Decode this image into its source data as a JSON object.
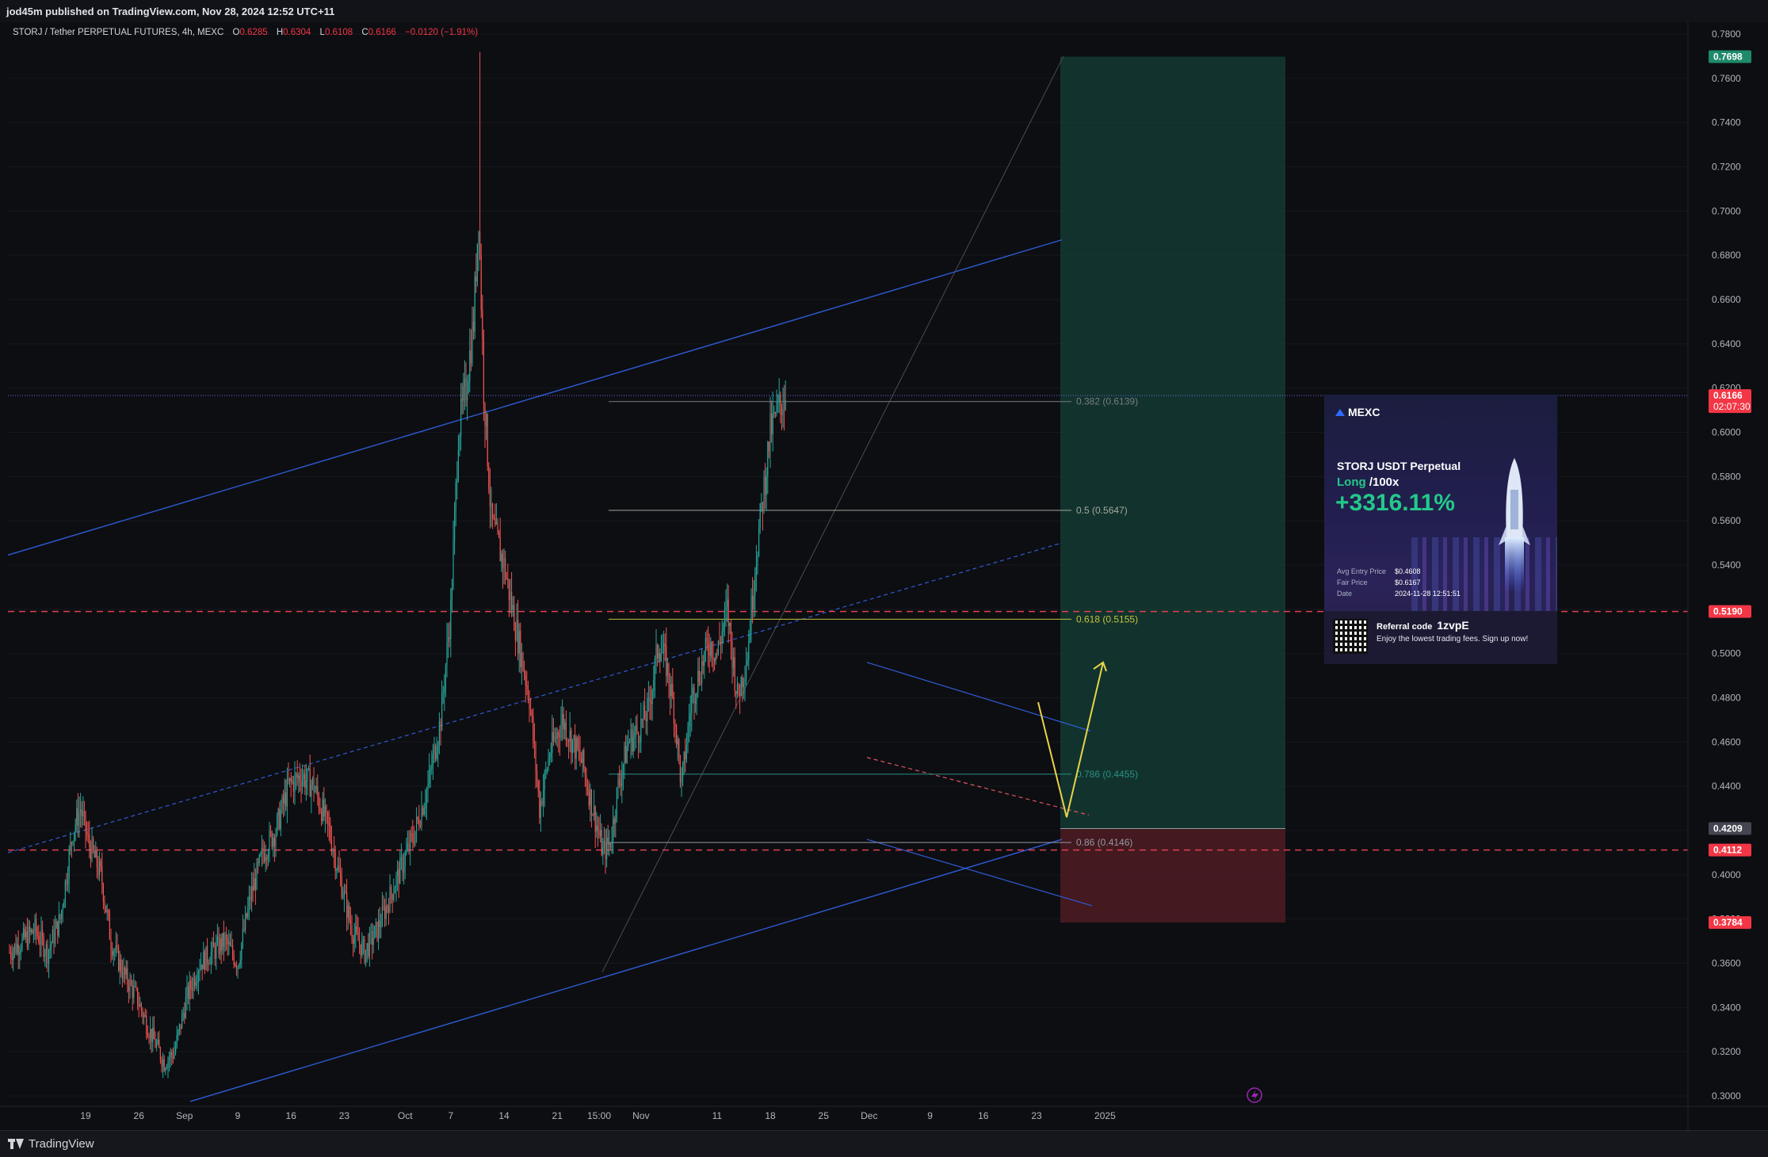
{
  "header": {
    "publish_line": "jod45m published on TradingView.com, Nov 28, 2024 12:52 UTC+11"
  },
  "legend": {
    "symbol": "STORJ / Tether PERPETUAL FUTURES, 4h, MEXC",
    "o_label": "O",
    "o_value": "0.6285",
    "h_label": "H",
    "h_value": "0.6304",
    "l_label": "L",
    "l_value": "0.6108",
    "c_label": "C",
    "c_value": "0.6166",
    "change": "−0.0120 (−1.91%)"
  },
  "price_axis": {
    "ticks": [
      "0.7800",
      "0.7600",
      "0.7400",
      "0.7200",
      "0.7000",
      "0.6800",
      "0.6600",
      "0.6400",
      "0.6200",
      "0.6000",
      "0.5800",
      "0.5600",
      "0.5400",
      "0.5200",
      "0.5000",
      "0.4800",
      "0.4600",
      "0.4400",
      "0.4200",
      "0.4000",
      "0.3800",
      "0.3600",
      "0.3400",
      "0.3200",
      "0.3000"
    ],
    "labels": [
      {
        "text": "0.7698",
        "price": 0.7698,
        "color": "#1e8a6a"
      },
      {
        "text": "0.6166",
        "price": 0.6166,
        "color": "#f23645",
        "sub": "02:07:30"
      },
      {
        "text": "0.5190",
        "price": 0.519,
        "color": "#f23645"
      },
      {
        "text": "0.4209",
        "price": 0.4209,
        "color": "#434651"
      },
      {
        "text": "0.4112",
        "price": 0.4112,
        "color": "#f23645"
      },
      {
        "text": "0.3784",
        "price": 0.3784,
        "color": "#f23645"
      }
    ]
  },
  "time_axis": {
    "ticks": [
      {
        "label": "19",
        "idx": 10
      },
      {
        "label": "26",
        "idx": 52
      },
      {
        "label": "Sep",
        "idx": 88
      },
      {
        "label": "9",
        "idx": 130
      },
      {
        "label": "16",
        "idx": 172
      },
      {
        "label": "23",
        "idx": 214
      },
      {
        "label": "Oct",
        "idx": 262
      },
      {
        "label": "7",
        "idx": 298
      },
      {
        "label": "14",
        "idx": 340
      },
      {
        "label": "21",
        "idx": 382
      },
      {
        "label": "15:00",
        "idx": 415
      },
      {
        "label": "Nov",
        "idx": 448
      },
      {
        "label": "11",
        "idx": 508
      },
      {
        "label": "18",
        "idx": 550
      },
      {
        "label": "25",
        "idx": 592
      },
      {
        "label": "Dec",
        "idx": 628
      },
      {
        "label": "9",
        "idx": 676
      },
      {
        "label": "16",
        "idx": 718
      },
      {
        "label": "23",
        "idx": 760
      },
      {
        "label": "2025",
        "idx": 814
      }
    ]
  },
  "fib_levels": [
    {
      "label": "0.382 (0.6139)",
      "price": 0.6139,
      "color": "#787b86"
    },
    {
      "label": "0.5 (0.5647)",
      "price": 0.5647,
      "color": "#a5a79f"
    },
    {
      "label": "0.618 (0.5155)",
      "price": 0.5155,
      "color": "#c5c23a"
    },
    {
      "label": "0.786 (0.4455)",
      "price": 0.4455,
      "color": "#2a8f86"
    },
    {
      "label": "0.86 (0.4146)",
      "price": 0.4146,
      "color": "#9598a1"
    }
  ],
  "position": {
    "entry": 0.4209,
    "target": 0.7698,
    "stop": 0.3784,
    "profit_color": "#143a33",
    "loss_color": "#4a1b22"
  },
  "chart_data": {
    "type": "candlestick",
    "title": "STORJ / Tether PERPETUAL FUTURES, 4h, MEXC",
    "ylim": [
      0.295,
      0.785
    ],
    "last_price": 0.6166,
    "ohlc_last": {
      "open": 0.6285,
      "high": 0.6304,
      "low": 0.6108,
      "close": 0.6166
    },
    "close_path": [
      [
        0,
        0.365
      ],
      [
        10,
        0.37
      ],
      [
        20,
        0.375
      ],
      [
        30,
        0.365
      ],
      [
        40,
        0.38
      ],
      [
        50,
        0.42
      ],
      [
        56,
        0.43
      ],
      [
        62,
        0.415
      ],
      [
        72,
        0.4
      ],
      [
        80,
        0.37
      ],
      [
        90,
        0.355
      ],
      [
        100,
        0.345
      ],
      [
        110,
        0.33
      ],
      [
        122,
        0.315
      ],
      [
        130,
        0.32
      ],
      [
        140,
        0.345
      ],
      [
        150,
        0.36
      ],
      [
        160,
        0.365
      ],
      [
        170,
        0.37
      ],
      [
        180,
        0.36
      ],
      [
        190,
        0.39
      ],
      [
        200,
        0.41
      ],
      [
        210,
        0.42
      ],
      [
        220,
        0.44
      ],
      [
        230,
        0.445
      ],
      [
        240,
        0.44
      ],
      [
        252,
        0.42
      ],
      [
        262,
        0.395
      ],
      [
        270,
        0.375
      ],
      [
        280,
        0.365
      ],
      [
        290,
        0.375
      ],
      [
        300,
        0.39
      ],
      [
        310,
        0.405
      ],
      [
        320,
        0.42
      ],
      [
        330,
        0.44
      ],
      [
        340,
        0.47
      ],
      [
        348,
        0.52
      ],
      [
        354,
        0.6
      ],
      [
        360,
        0.62
      ],
      [
        366,
        0.65
      ],
      [
        370,
        0.7
      ],
      [
        374,
        0.62
      ],
      [
        380,
        0.56
      ],
      [
        390,
        0.54
      ],
      [
        400,
        0.51
      ],
      [
        410,
        0.48
      ],
      [
        418,
        0.43
      ],
      [
        426,
        0.455
      ],
      [
        436,
        0.47
      ],
      [
        444,
        0.46
      ],
      [
        452,
        0.45
      ],
      [
        460,
        0.43
      ],
      [
        468,
        0.41
      ],
      [
        474,
        0.415
      ],
      [
        480,
        0.44
      ],
      [
        488,
        0.46
      ],
      [
        496,
        0.465
      ],
      [
        504,
        0.475
      ],
      [
        512,
        0.505
      ],
      [
        518,
        0.495
      ],
      [
        524,
        0.475
      ],
      [
        530,
        0.44
      ],
      [
        538,
        0.48
      ],
      [
        546,
        0.495
      ],
      [
        552,
        0.505
      ],
      [
        558,
        0.5
      ],
      [
        566,
        0.52
      ],
      [
        574,
        0.48
      ],
      [
        582,
        0.5
      ],
      [
        588,
        0.54
      ],
      [
        596,
        0.58
      ],
      [
        600,
        0.6
      ],
      [
        606,
        0.61
      ],
      [
        612,
        0.6166
      ]
    ],
    "spike": {
      "idx": 371,
      "high": 0.772
    }
  }
}
